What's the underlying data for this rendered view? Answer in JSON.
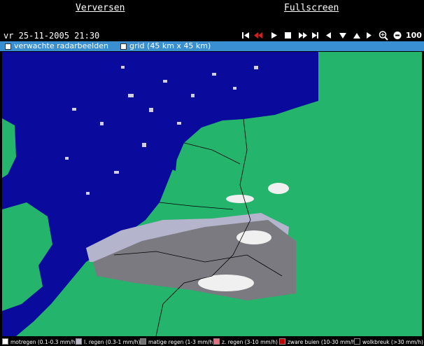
{
  "header": {
    "links": [
      "Verversen",
      "Fullscreen"
    ]
  },
  "toolbar": {
    "timestamp": "vr 25-11-2005 21:30",
    "zoom": "100"
  },
  "options": [
    "verwachte radarbeelden",
    "grid (45 km x 45 km)"
  ],
  "legend": [
    {
      "label": "motregen (0.1-0.3 mm/h)",
      "color": "#ffffff"
    },
    {
      "label": "l. regen (0.3-1 mm/h)",
      "color": "#b8b8c8"
    },
    {
      "label": "matige regen (1-3 mm/h)",
      "color": "#707070"
    },
    {
      "label": "z. regen (3-10 mm/h)",
      "color": "#e07080"
    },
    {
      "label": "zware buien (10-30 mm/h)",
      "color": "#c00000"
    },
    {
      "label": "wolkbreuk (>30 mm/h)",
      "color": "#000000"
    }
  ]
}
